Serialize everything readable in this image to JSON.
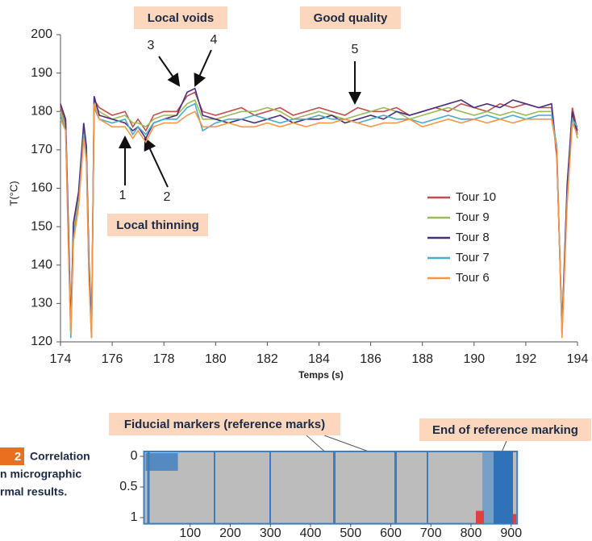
{
  "chart_data": [
    {
      "type": "line",
      "ylabel": "T(°C)",
      "xlabel": "Temps (s)",
      "x": [
        174,
        174.2,
        174.3,
        174.4,
        174.5,
        174.7,
        174.9,
        175.0,
        175.1,
        175.2,
        175.3,
        175.5,
        176,
        176.5,
        176.8,
        177,
        177.3,
        177.6,
        178,
        178.5,
        178.9,
        179.2,
        179.5,
        180,
        180.5,
        181,
        181.5,
        182,
        182.5,
        183,
        183.5,
        184,
        184.5,
        185,
        185.5,
        186,
        186.5,
        187,
        187.5,
        188,
        188.5,
        189,
        189.5,
        190,
        190.5,
        191,
        191.5,
        192,
        192.5,
        193,
        193.2,
        193.4,
        193.6,
        193.8,
        194
      ],
      "series": [
        {
          "name": "Tour 10",
          "color": "#c0504d",
          "values": [
            181,
            177,
            150,
            123,
            150,
            158,
            176,
            170,
            140,
            122,
            183,
            181,
            179,
            180,
            176,
            178,
            175,
            179,
            180,
            180,
            184,
            185,
            180,
            179,
            180,
            181,
            179,
            180,
            181,
            179,
            180,
            181,
            180,
            179,
            181,
            180,
            180,
            181,
            179,
            180,
            181,
            180,
            182,
            181,
            180,
            182,
            181,
            182,
            181,
            181,
            168,
            124,
            160,
            181,
            175
          ]
        },
        {
          "name": "Tour 9",
          "color": "#9bbb59",
          "values": [
            180,
            176,
            148,
            122,
            149,
            157,
            175,
            169,
            138,
            121,
            182,
            180,
            178,
            179,
            177,
            177,
            176,
            178,
            179,
            179,
            182,
            183,
            178,
            178,
            179,
            180,
            180,
            181,
            180,
            178,
            179,
            180,
            179,
            178,
            179,
            180,
            181,
            180,
            178,
            179,
            180,
            181,
            180,
            179,
            180,
            179,
            180,
            179,
            180,
            180,
            170,
            122,
            158,
            179,
            173
          ]
        },
        {
          "name": "Tour 8",
          "color": "#4b2d7f",
          "values": [
            182,
            178,
            152,
            124,
            151,
            159,
            177,
            171,
            141,
            123,
            184,
            179,
            178,
            177,
            175,
            176,
            173,
            177,
            178,
            179,
            185,
            186,
            179,
            178,
            177,
            178,
            177,
            178,
            179,
            177,
            178,
            178,
            179,
            177,
            178,
            179,
            178,
            180,
            179,
            180,
            181,
            182,
            183,
            181,
            182,
            181,
            183,
            182,
            181,
            182,
            169,
            123,
            161,
            180,
            174
          ]
        },
        {
          "name": "Tour 7",
          "color": "#4aacc6",
          "values": [
            179,
            175,
            147,
            121,
            147,
            156,
            174,
            168,
            137,
            121,
            181,
            178,
            177,
            178,
            174,
            176,
            174,
            177,
            178,
            178,
            181,
            182,
            175,
            177,
            178,
            178,
            179,
            178,
            177,
            178,
            178,
            179,
            178,
            178,
            177,
            178,
            179,
            178,
            178,
            177,
            178,
            179,
            178,
            178,
            179,
            178,
            179,
            178,
            179,
            179,
            171,
            122,
            157,
            178,
            176
          ]
        },
        {
          "name": "Tour 6",
          "color": "#f79646",
          "values": [
            178,
            175,
            146,
            122,
            146,
            155,
            173,
            167,
            136,
            121,
            182,
            178,
            176,
            176,
            173,
            175,
            172,
            176,
            177,
            177,
            179,
            180,
            176,
            176,
            177,
            176,
            176,
            177,
            176,
            177,
            176,
            177,
            177,
            178,
            177,
            176,
            177,
            177,
            178,
            176,
            177,
            178,
            177,
            178,
            177,
            178,
            177,
            178,
            178,
            178,
            170,
            121,
            156,
            177,
            174
          ]
        }
      ],
      "xlim": [
        174,
        194
      ],
      "xticks": [
        174,
        176,
        178,
        180,
        182,
        184,
        186,
        188,
        190,
        192,
        194
      ],
      "ylim": [
        120,
        200
      ],
      "yticks": [
        120,
        130,
        140,
        150,
        160,
        170,
        180,
        190,
        200
      ],
      "legend": "right",
      "annotations": [
        "Local voids",
        "Good quality",
        "Local thinning",
        "1",
        "2",
        "3",
        "4",
        "5"
      ]
    },
    {
      "type": "heatmap",
      "xlim": [
        -15,
        915
      ],
      "xticks": [
        100,
        200,
        300,
        400,
        500,
        600,
        700,
        800,
        900
      ],
      "ylim": [
        -0.08,
        1.1
      ],
      "yticks": [
        0,
        0.5,
        1
      ],
      "yinverted": true,
      "annotations": [
        "Fiducial markers (reference marks)",
        "End of reference marking"
      ]
    }
  ],
  "caption": {
    "figure_number": "2",
    "lines": [
      "Correlation",
      "n micrographic",
      "rmal results."
    ]
  }
}
